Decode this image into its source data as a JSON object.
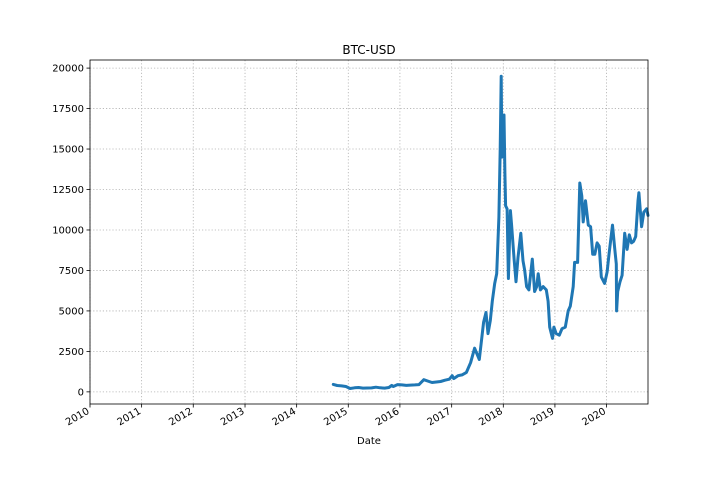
{
  "chart_data": {
    "type": "line",
    "title": "BTC-USD",
    "xlabel": "Date",
    "ylabel": "",
    "xlim": [
      "2010-01-01",
      "2020-10-20"
    ],
    "ylim": [
      -750,
      20500
    ],
    "x_ticks": [
      "2010",
      "2011",
      "2012",
      "2013",
      "2014",
      "2015",
      "2016",
      "2017",
      "2018",
      "2019",
      "2020"
    ],
    "y_ticks": [
      0,
      2500,
      5000,
      7500,
      10000,
      12500,
      15000,
      17500,
      20000
    ],
    "grid": true,
    "series": [
      {
        "color": "#1f77b4",
        "x": [
          "2014-09-17",
          "2014-10-15",
          "2014-11-15",
          "2014-12-15",
          "2015-01-14",
          "2015-02-15",
          "2015-03-15",
          "2015-04-15",
          "2015-05-15",
          "2015-06-15",
          "2015-07-15",
          "2015-08-15",
          "2015-09-15",
          "2015-10-15",
          "2015-11-05",
          "2015-11-15",
          "2015-12-15",
          "2016-01-15",
          "2016-02-15",
          "2016-03-15",
          "2016-04-15",
          "2016-05-15",
          "2016-06-18",
          "2016-07-15",
          "2016-08-15",
          "2016-09-15",
          "2016-10-15",
          "2016-11-15",
          "2016-12-15",
          "2017-01-05",
          "2017-01-15",
          "2017-02-15",
          "2017-03-15",
          "2017-04-15",
          "2017-05-15",
          "2017-06-12",
          "2017-07-15",
          "2017-08-15",
          "2017-09-01",
          "2017-09-15",
          "2017-10-01",
          "2017-10-15",
          "2017-11-01",
          "2017-11-15",
          "2017-12-01",
          "2017-12-10",
          "2017-12-17",
          "2017-12-22",
          "2017-12-28",
          "2018-01-06",
          "2018-01-12",
          "2018-01-17",
          "2018-01-28",
          "2018-02-06",
          "2018-02-20",
          "2018-03-01",
          "2018-03-18",
          "2018-04-01",
          "2018-04-15",
          "2018-05-05",
          "2018-05-20",
          "2018-06-01",
          "2018-06-15",
          "2018-07-01",
          "2018-07-25",
          "2018-08-10",
          "2018-08-25",
          "2018-09-05",
          "2018-09-20",
          "2018-10-10",
          "2018-11-01",
          "2018-11-14",
          "2018-11-25",
          "2018-12-15",
          "2018-12-25",
          "2019-01-10",
          "2019-02-01",
          "2019-02-20",
          "2019-03-15",
          "2019-04-05",
          "2019-04-20",
          "2019-05-10",
          "2019-05-20",
          "2019-06-10",
          "2019-06-26",
          "2019-07-10",
          "2019-07-20",
          "2019-08-05",
          "2019-08-25",
          "2019-09-10",
          "2019-09-25",
          "2019-10-10",
          "2019-10-26",
          "2019-11-10",
          "2019-11-25",
          "2019-12-18",
          "2020-01-05",
          "2020-01-20",
          "2020-02-12",
          "2020-02-28",
          "2020-03-10",
          "2020-03-12",
          "2020-03-20",
          "2020-04-05",
          "2020-04-20",
          "2020-05-08",
          "2020-05-25",
          "2020-06-10",
          "2020-06-25",
          "2020-07-10",
          "2020-07-25",
          "2020-08-10",
          "2020-08-17",
          "2020-09-05",
          "2020-09-20",
          "2020-10-10",
          "2020-10-20"
        ],
        "values": [
          460,
          390,
          370,
          330,
          210,
          250,
          270,
          230,
          240,
          245,
          285,
          250,
          235,
          270,
          400,
          330,
          450,
          430,
          400,
          420,
          430,
          450,
          750,
          670,
          580,
          610,
          640,
          720,
          780,
          1000,
          820,
          1000,
          1050,
          1200,
          1800,
          2700,
          2000,
          4300,
          4900,
          3600,
          4400,
          5600,
          6700,
          7300,
          10800,
          15000,
          19500,
          14500,
          15800,
          17100,
          13500,
          11500,
          11300,
          7000,
          11200,
          10300,
          8200,
          6800,
          8300,
          9800,
          8100,
          7500,
          6500,
          6300,
          8200,
          6200,
          6500,
          7300,
          6300,
          6500,
          6300,
          5600,
          4000,
          3300,
          4000,
          3600,
          3500,
          3900,
          4000,
          5000,
          5300,
          6500,
          8000,
          8000,
          12900,
          12100,
          10500,
          11800,
          10300,
          10200,
          8500,
          8500,
          9200,
          9000,
          7100,
          6700,
          7400,
          8600,
          10300,
          8800,
          7900,
          5000,
          6200,
          6800,
          7200,
          9800,
          8800,
          9700,
          9200,
          9300,
          9600,
          11800,
          12300,
          10200,
          11100,
          11300,
          10900
        ]
      }
    ]
  }
}
